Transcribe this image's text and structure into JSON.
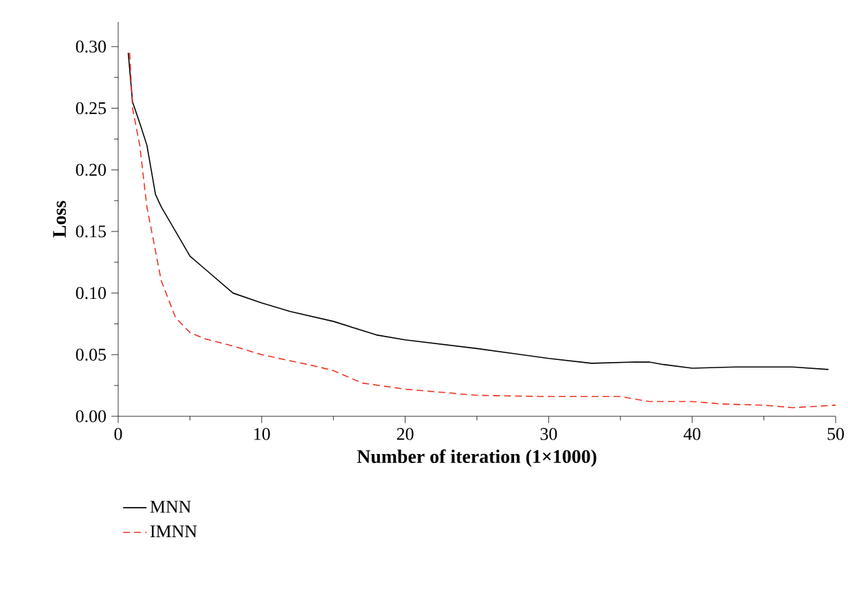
{
  "chart_data": {
    "type": "line",
    "xlabel": "Number of iteration (1×1000)",
    "ylabel": "Loss",
    "xlim": [
      0,
      50
    ],
    "xticks": [
      0,
      10,
      20,
      30,
      40,
      50
    ],
    "ylim": [
      0,
      0.32
    ],
    "yticks": [
      {
        "value": 0,
        "label": "0.00"
      },
      {
        "value": 0.05,
        "label": "0.05"
      },
      {
        "value": 0.1,
        "label": "0.10"
      },
      {
        "value": 0.15,
        "label": "0.15"
      },
      {
        "value": 0.2,
        "label": "0.20"
      },
      {
        "value": 0.25,
        "label": "0.25"
      },
      {
        "value": 0.3,
        "label": "0.30"
      }
    ],
    "legend": "bottom left",
    "grid": false,
    "marker": "none",
    "series": [
      {
        "name": "MNN",
        "color": "#000000",
        "line_style": "solid",
        "x": [
          0.7,
          1,
          1.5,
          2,
          2.3,
          2.6,
          3,
          4,
          5,
          6,
          8,
          10,
          12,
          15,
          18,
          20,
          25,
          30,
          33,
          36,
          37,
          38,
          40,
          43,
          47,
          49.5
        ],
        "values": [
          0.295,
          0.255,
          0.238,
          0.22,
          0.2,
          0.18,
          0.17,
          0.15,
          0.13,
          0.12,
          0.1,
          0.092,
          0.085,
          0.077,
          0.066,
          0.062,
          0.055,
          0.047,
          0.043,
          0.044,
          0.044,
          0.042,
          0.039,
          0.04,
          0.04,
          0.038
        ]
      },
      {
        "name": "IMNN",
        "color": "#ee3322",
        "line_style": "dashed",
        "x": [
          0.8,
          1,
          1.5,
          2,
          2.5,
          3,
          4,
          5,
          6,
          8,
          10,
          12,
          14,
          15,
          17,
          20,
          25,
          30,
          35,
          37,
          40,
          42,
          45,
          47,
          50
        ],
        "values": [
          0.295,
          0.25,
          0.22,
          0.17,
          0.14,
          0.11,
          0.08,
          0.068,
          0.063,
          0.057,
          0.05,
          0.045,
          0.04,
          0.037,
          0.027,
          0.022,
          0.017,
          0.016,
          0.016,
          0.012,
          0.012,
          0.01,
          0.009,
          0.007,
          0.009
        ]
      }
    ]
  }
}
